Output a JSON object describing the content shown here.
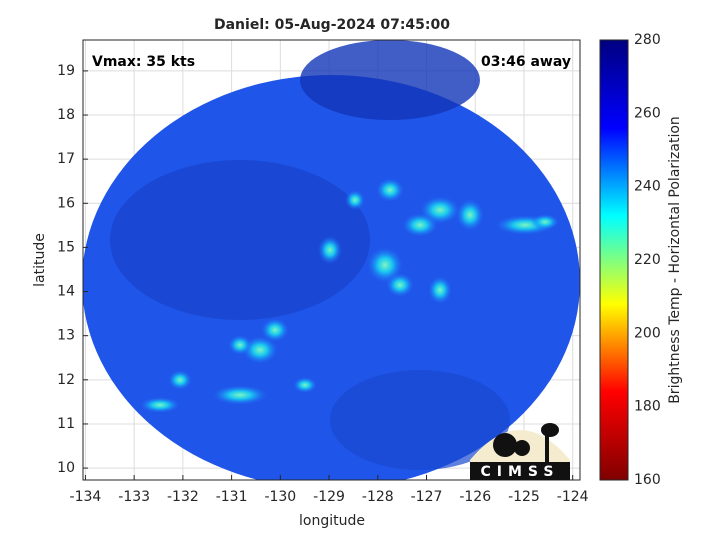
{
  "chart_data": {
    "type": "image",
    "title": "Daniel: 05-Aug-2024 07:45:00",
    "annotations": [
      "Vmax: 35 kts",
      "03:46 away"
    ],
    "xlabel": "longitude",
    "ylabel": "latitude",
    "xlim": [
      -134.05,
      -123.85
    ],
    "xticks": [
      -134,
      -133,
      -132,
      -131,
      -130,
      -129,
      -128,
      -127,
      -126,
      -125,
      -124
    ],
    "ylim": [
      9.73,
      19.7
    ],
    "yticks": [
      10,
      11,
      12,
      13,
      14,
      15,
      16,
      17,
      18,
      19
    ],
    "grid": true,
    "colorbar": {
      "label": "Brightness Temp - Horizontal Polarization",
      "lim": [
        160,
        280
      ],
      "ticks": [
        160,
        180,
        200,
        220,
        240,
        260,
        280
      ],
      "colors": [
        "#800000",
        "#ff0000",
        "#ffff00",
        "#00ffff",
        "#0000ff",
        "#000080"
      ]
    },
    "logo": "CIMSS"
  }
}
